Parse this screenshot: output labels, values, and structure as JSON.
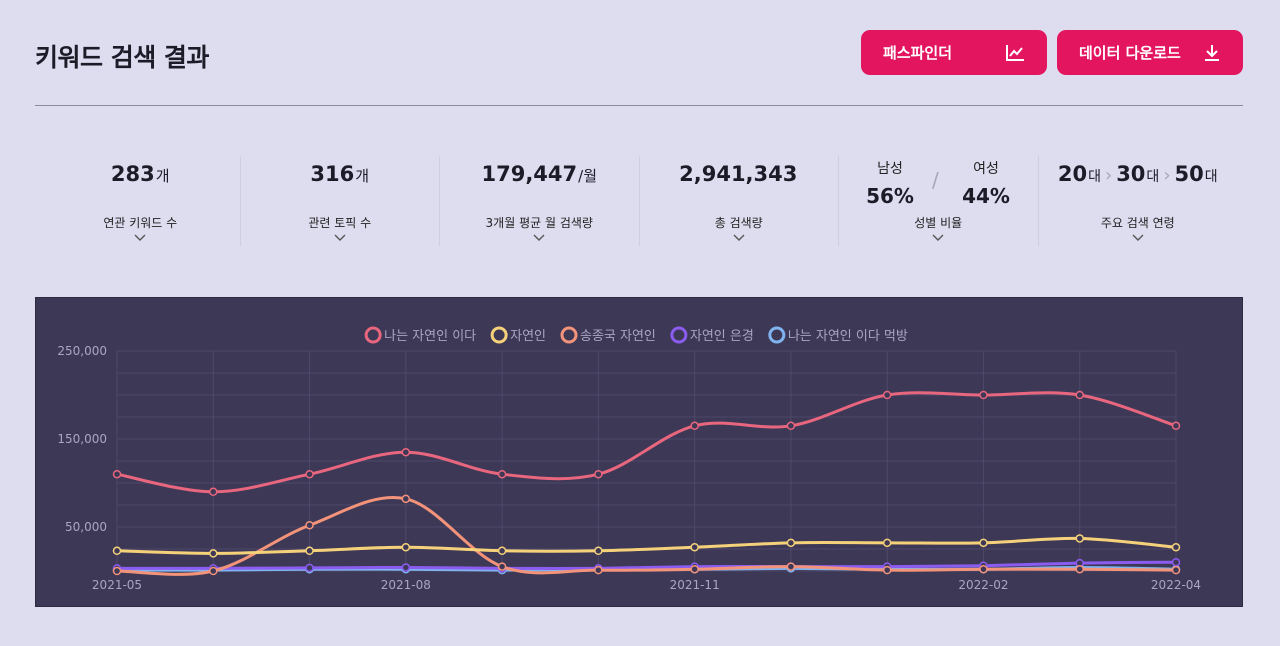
{
  "header": {
    "title": "키워드 검색 결과",
    "path_button": "패스파인더",
    "download_button": "데이터 다운로드"
  },
  "stats": [
    {
      "value": "283",
      "unit": "개",
      "label": "연관 키워드 수"
    },
    {
      "value": "316",
      "unit": "개",
      "label": "관련 토픽 수"
    },
    {
      "value": "179,447",
      "unit": "/월",
      "label": "3개월 평균 월 검색량"
    },
    {
      "value": "2,941,343",
      "unit": "",
      "label": "총 검색량"
    }
  ],
  "gender": {
    "male_label": "남성",
    "male_pct": "56%",
    "female_label": "여성",
    "female_pct": "44%",
    "slash": "/",
    "label": "성별 비율"
  },
  "ages": {
    "items": [
      {
        "num": "20",
        "unit": "대"
      },
      {
        "num": "30",
        "unit": "대"
      },
      {
        "num": "50",
        "unit": "대"
      }
    ],
    "separator": "›",
    "label": "주요 검색 연령"
  },
  "colors": {
    "accent": "#e4155f",
    "chart_bg": "#3e3857"
  },
  "chart_data": {
    "type": "line",
    "x": [
      "2021-05",
      "2021-06",
      "2021-07",
      "2021-08",
      "2021-09",
      "2021-10",
      "2021-11",
      "2021-12",
      "2022-01",
      "2022-02",
      "2022-03",
      "2022-04"
    ],
    "x_tick_labels": [
      "2021-05",
      "2021-08",
      "2021-11",
      "2022-02",
      "2022-04"
    ],
    "y_tick_labels": [
      "250,000",
      "150,000",
      "50,000"
    ],
    "ylim": [
      0,
      250000
    ],
    "legend_position": "top",
    "grid": true,
    "series": [
      {
        "name": "나는 자연인 이다",
        "color": "#e8667e",
        "values": [
          110000,
          90000,
          110000,
          135000,
          110000,
          110000,
          165000,
          165000,
          200000,
          200000,
          200000,
          165000
        ]
      },
      {
        "name": "자연인",
        "color": "#f5d27a",
        "values": [
          23000,
          20000,
          23000,
          27000,
          23000,
          23000,
          27000,
          32000,
          32000,
          32000,
          37000,
          27000
        ]
      },
      {
        "name": "송종국 자연인",
        "color": "#f2937a",
        "values": [
          0,
          0,
          52000,
          82000,
          5000,
          1000,
          2000,
          5000,
          1000,
          2000,
          2000,
          1000
        ]
      },
      {
        "name": "자연인 은경",
        "color": "#8b5cf0",
        "values": [
          3000,
          3000,
          3500,
          4000,
          3000,
          3000,
          5000,
          5000,
          5000,
          6000,
          9000,
          10000
        ]
      },
      {
        "name": "나는 자연인 이다 먹방",
        "color": "#7fb4f0",
        "values": [
          1000,
          1000,
          2000,
          2000,
          1000,
          2000,
          2000,
          3000,
          2000,
          2000,
          4000,
          2000
        ]
      }
    ]
  }
}
